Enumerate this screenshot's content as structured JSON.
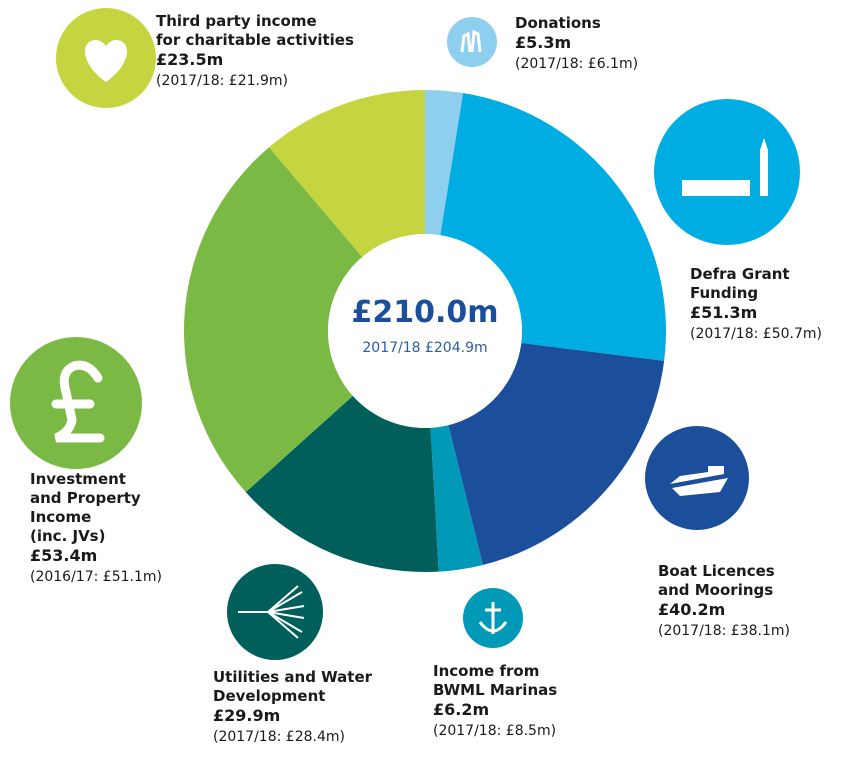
{
  "chart_data": {
    "type": "pie",
    "donut": true,
    "center_title": "£210.0m",
    "center_subtitle": "2017/18 £204.9m",
    "categories": [
      "Donations",
      "Defra Grant\nFunding",
      "Boat Licences\nand Moorings",
      "Income from\nBWML Marinas",
      "Utilities and Water\nDevelopment",
      "Investment\nand Property\nIncome\n(inc. JVs)",
      "Third party income\nfor charitable activities"
    ],
    "values": [
      5.3,
      51.3,
      40.2,
      6.2,
      29.9,
      53.4,
      23.5
    ],
    "value_labels": [
      "£5.3m",
      "£51.3m",
      "£40.2m",
      "£6.2m",
      "£29.9m",
      "£53.4m",
      "£23.5m"
    ],
    "notes": [
      "(2017/18: £6.1m)",
      "(2017/18: £50.7m)",
      "(2017/18: £38.1m)",
      "(2017/18: £8.5m)",
      "(2017/18: £28.4m)",
      "(2016/17: £51.1m)",
      "(2017/18: £21.9m)"
    ],
    "colors": [
      "#8ecfef",
      "#00ade2",
      "#1b4f9c",
      "#0099b8",
      "#005f5b",
      "#7ab943",
      "#c5d53f"
    ]
  }
}
